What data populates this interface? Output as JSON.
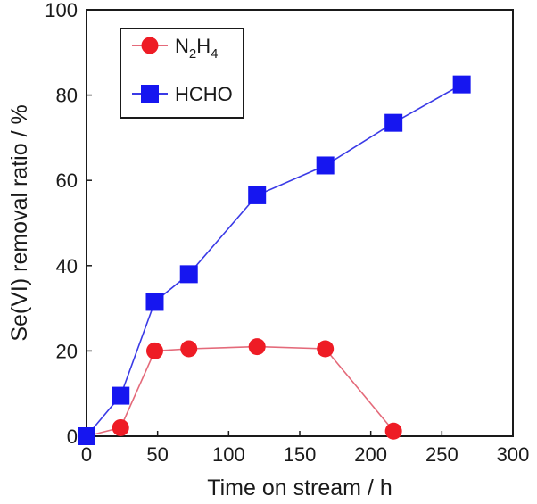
{
  "chart_data": {
    "type": "line",
    "xlabel": "Time on stream / h",
    "ylabel": "Se(VI) removal ratio / %",
    "xlim": [
      0,
      300
    ],
    "ylim": [
      0,
      100
    ],
    "x_ticks": [
      0,
      50,
      100,
      150,
      200,
      250,
      300
    ],
    "y_ticks": [
      0,
      20,
      40,
      60,
      80,
      100
    ],
    "grid": false,
    "legend_position": "top-left",
    "series": [
      {
        "name": "N2H4",
        "name_parts": {
          "n": "N",
          "sub1": "2",
          "h": "H",
          "sub2": "4"
        },
        "marker": "circle",
        "color": "#ee1c25",
        "line_color": "#e46a7a",
        "x": [
          0,
          24,
          48,
          72,
          120,
          168,
          216
        ],
        "y": [
          0,
          2,
          20,
          20.5,
          21,
          20.5,
          1.2
        ]
      },
      {
        "name": "HCHO",
        "marker": "square",
        "color": "#1616f0",
        "line_color": "#3a3ae6",
        "x": [
          0,
          24,
          48,
          72,
          120,
          168,
          216,
          264
        ],
        "y": [
          0,
          9.5,
          31.5,
          38,
          56.5,
          63.5,
          73.5,
          82.5
        ]
      }
    ]
  }
}
